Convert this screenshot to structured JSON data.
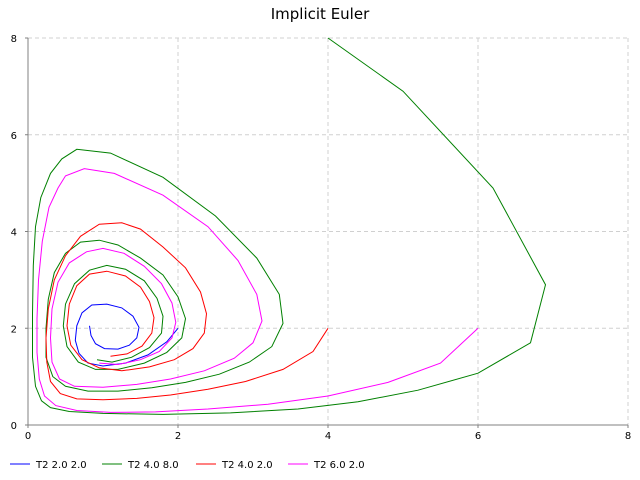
{
  "chart_data": {
    "type": "line",
    "title": "Implicit Euler",
    "xlabel": "",
    "ylabel": "",
    "xlim": [
      0,
      8
    ],
    "ylim": [
      0,
      8
    ],
    "xticks": [
      0,
      2,
      4,
      6,
      8
    ],
    "yticks": [
      0,
      2,
      4,
      6,
      8
    ],
    "grid": true,
    "legend_position": "bottom",
    "series": [
      {
        "name": "T2 2.0 2.0",
        "color": "#0000ff",
        "points": [
          [
            2.0,
            2.0
          ],
          [
            1.85,
            1.72
          ],
          [
            1.6,
            1.45
          ],
          [
            1.3,
            1.28
          ],
          [
            1.0,
            1.22
          ],
          [
            0.8,
            1.28
          ],
          [
            0.68,
            1.48
          ],
          [
            0.63,
            1.75
          ],
          [
            0.65,
            2.05
          ],
          [
            0.72,
            2.32
          ],
          [
            0.85,
            2.48
          ],
          [
            1.05,
            2.5
          ],
          [
            1.25,
            2.42
          ],
          [
            1.4,
            2.25
          ],
          [
            1.48,
            2.02
          ],
          [
            1.45,
            1.8
          ],
          [
            1.35,
            1.65
          ],
          [
            1.2,
            1.57
          ],
          [
            1.02,
            1.58
          ],
          [
            0.9,
            1.68
          ],
          [
            0.84,
            1.85
          ],
          [
            0.82,
            2.05
          ]
        ]
      },
      {
        "name": "T2 4.0 8.0",
        "color": "#008000",
        "points": [
          [
            4.0,
            8.0
          ],
          [
            5.0,
            6.9
          ],
          [
            6.2,
            4.9
          ],
          [
            6.9,
            2.9
          ],
          [
            6.7,
            1.7
          ],
          [
            6.0,
            1.07
          ],
          [
            5.2,
            0.72
          ],
          [
            4.4,
            0.48
          ],
          [
            3.6,
            0.33
          ],
          [
            2.7,
            0.25
          ],
          [
            1.8,
            0.22
          ],
          [
            1.0,
            0.24
          ],
          [
            0.55,
            0.28
          ],
          [
            0.3,
            0.36
          ],
          [
            0.18,
            0.5
          ],
          [
            0.1,
            0.8
          ],
          [
            0.06,
            1.4
          ],
          [
            0.06,
            2.3
          ],
          [
            0.07,
            3.3
          ],
          [
            0.1,
            4.1
          ],
          [
            0.17,
            4.7
          ],
          [
            0.3,
            5.2
          ],
          [
            0.45,
            5.5
          ],
          [
            0.65,
            5.7
          ],
          [
            1.1,
            5.62
          ],
          [
            1.8,
            5.12
          ],
          [
            2.5,
            4.32
          ],
          [
            3.05,
            3.45
          ],
          [
            3.35,
            2.7
          ],
          [
            3.4,
            2.1
          ],
          [
            3.25,
            1.62
          ],
          [
            2.95,
            1.3
          ],
          [
            2.55,
            1.05
          ],
          [
            2.1,
            0.88
          ],
          [
            1.65,
            0.77
          ],
          [
            1.2,
            0.7
          ],
          [
            0.8,
            0.7
          ],
          [
            0.5,
            0.8
          ],
          [
            0.33,
            1.0
          ],
          [
            0.24,
            1.4
          ],
          [
            0.24,
            2.0
          ],
          [
            0.27,
            2.6
          ],
          [
            0.35,
            3.15
          ],
          [
            0.5,
            3.55
          ],
          [
            0.7,
            3.78
          ],
          [
            0.95,
            3.82
          ],
          [
            1.2,
            3.72
          ],
          [
            1.5,
            3.45
          ],
          [
            1.8,
            3.1
          ],
          [
            2.0,
            2.65
          ],
          [
            2.1,
            2.2
          ],
          [
            2.05,
            1.8
          ],
          [
            1.85,
            1.5
          ],
          [
            1.55,
            1.28
          ],
          [
            1.2,
            1.15
          ],
          [
            0.9,
            1.15
          ],
          [
            0.67,
            1.3
          ],
          [
            0.52,
            1.62
          ],
          [
            0.47,
            2.05
          ],
          [
            0.5,
            2.5
          ],
          [
            0.62,
            2.92
          ],
          [
            0.82,
            3.2
          ],
          [
            1.05,
            3.3
          ],
          [
            1.3,
            3.22
          ],
          [
            1.55,
            2.98
          ],
          [
            1.72,
            2.62
          ],
          [
            1.8,
            2.25
          ],
          [
            1.78,
            1.9
          ],
          [
            1.62,
            1.6
          ],
          [
            1.38,
            1.4
          ],
          [
            1.12,
            1.3
          ],
          [
            0.92,
            1.35
          ]
        ]
      },
      {
        "name": "T2 4.0 2.0",
        "color": "#ff0000",
        "points": [
          [
            4.0,
            2.0
          ],
          [
            3.8,
            1.52
          ],
          [
            3.4,
            1.15
          ],
          [
            2.9,
            0.9
          ],
          [
            2.4,
            0.74
          ],
          [
            1.9,
            0.62
          ],
          [
            1.45,
            0.55
          ],
          [
            1.0,
            0.52
          ],
          [
            0.65,
            0.54
          ],
          [
            0.43,
            0.65
          ],
          [
            0.3,
            0.9
          ],
          [
            0.25,
            1.3
          ],
          [
            0.24,
            1.8
          ],
          [
            0.27,
            2.4
          ],
          [
            0.35,
            3.0
          ],
          [
            0.5,
            3.5
          ],
          [
            0.7,
            3.9
          ],
          [
            0.95,
            4.15
          ],
          [
            1.25,
            4.18
          ],
          [
            1.5,
            4.05
          ],
          [
            1.8,
            3.68
          ],
          [
            2.1,
            3.25
          ],
          [
            2.3,
            2.75
          ],
          [
            2.38,
            2.3
          ],
          [
            2.35,
            1.9
          ],
          [
            2.2,
            1.58
          ],
          [
            1.95,
            1.35
          ],
          [
            1.62,
            1.2
          ],
          [
            1.25,
            1.12
          ],
          [
            0.95,
            1.18
          ],
          [
            0.72,
            1.35
          ],
          [
            0.57,
            1.65
          ],
          [
            0.52,
            2.05
          ],
          [
            0.55,
            2.5
          ],
          [
            0.65,
            2.88
          ],
          [
            0.82,
            3.12
          ],
          [
            1.05,
            3.18
          ],
          [
            1.3,
            3.08
          ],
          [
            1.5,
            2.85
          ],
          [
            1.62,
            2.55
          ],
          [
            1.68,
            2.22
          ],
          [
            1.65,
            1.9
          ],
          [
            1.52,
            1.63
          ],
          [
            1.32,
            1.47
          ],
          [
            1.1,
            1.42
          ]
        ]
      },
      {
        "name": "T2 6.0 2.0",
        "color": "#ff00ff",
        "points": [
          [
            6.0,
            2.0
          ],
          [
            5.5,
            1.28
          ],
          [
            4.8,
            0.88
          ],
          [
            4.0,
            0.6
          ],
          [
            3.2,
            0.43
          ],
          [
            2.4,
            0.33
          ],
          [
            1.7,
            0.27
          ],
          [
            1.1,
            0.26
          ],
          [
            0.65,
            0.3
          ],
          [
            0.37,
            0.4
          ],
          [
            0.22,
            0.6
          ],
          [
            0.15,
            0.95
          ],
          [
            0.12,
            1.5
          ],
          [
            0.12,
            2.2
          ],
          [
            0.14,
            3.0
          ],
          [
            0.19,
            3.8
          ],
          [
            0.28,
            4.5
          ],
          [
            0.4,
            4.9
          ],
          [
            0.5,
            5.15
          ],
          [
            0.75,
            5.3
          ],
          [
            1.15,
            5.2
          ],
          [
            1.8,
            4.75
          ],
          [
            2.4,
            4.1
          ],
          [
            2.8,
            3.4
          ],
          [
            3.05,
            2.7
          ],
          [
            3.12,
            2.15
          ],
          [
            3.0,
            1.7
          ],
          [
            2.75,
            1.38
          ],
          [
            2.35,
            1.12
          ],
          [
            1.9,
            0.95
          ],
          [
            1.45,
            0.84
          ],
          [
            1.0,
            0.78
          ],
          [
            0.62,
            0.8
          ],
          [
            0.42,
            0.95
          ],
          [
            0.32,
            1.3
          ],
          [
            0.3,
            1.8
          ],
          [
            0.32,
            2.4
          ],
          [
            0.4,
            2.95
          ],
          [
            0.55,
            3.35
          ],
          [
            0.78,
            3.58
          ],
          [
            1.0,
            3.65
          ],
          [
            1.28,
            3.55
          ],
          [
            1.55,
            3.28
          ],
          [
            1.78,
            2.92
          ],
          [
            1.92,
            2.52
          ],
          [
            1.97,
            2.12
          ],
          [
            1.92,
            1.8
          ],
          [
            1.75,
            1.52
          ],
          [
            1.5,
            1.35
          ],
          [
            1.2,
            1.25
          ],
          [
            0.95,
            1.28
          ]
        ]
      }
    ]
  }
}
